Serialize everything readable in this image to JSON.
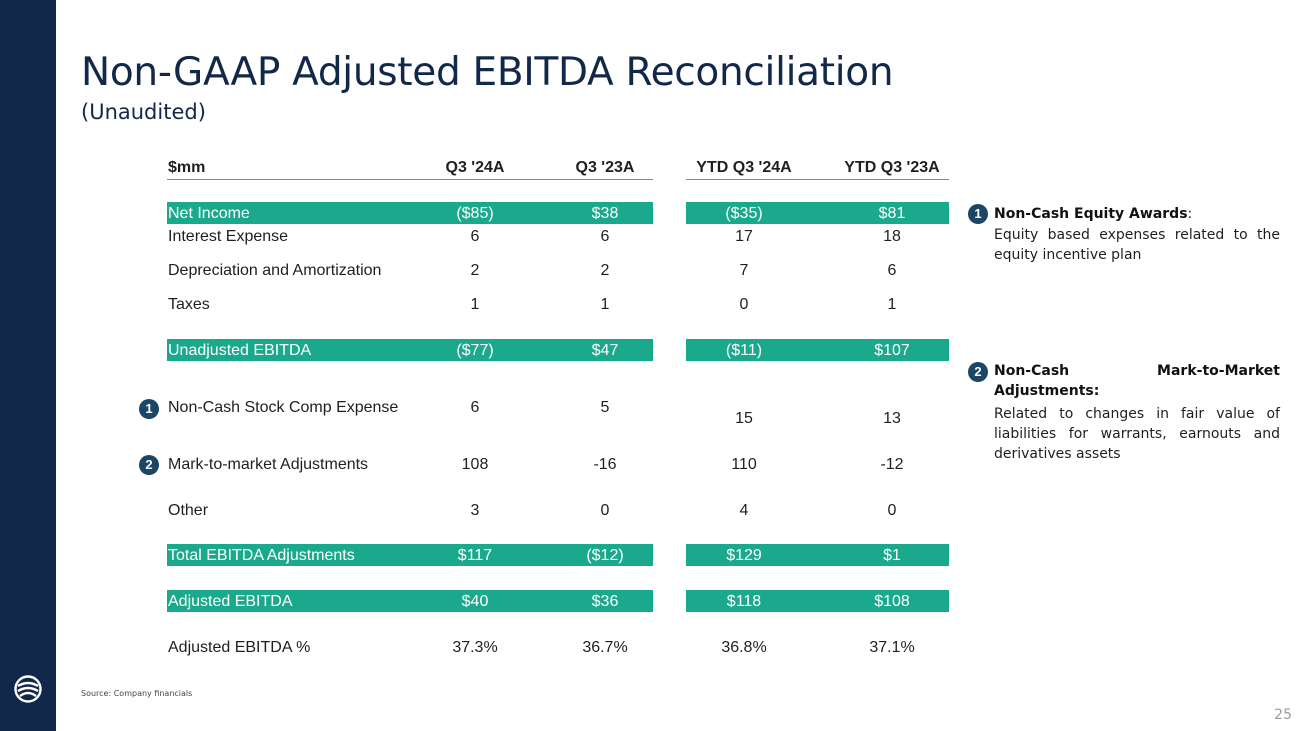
{
  "title": "Non-GAAP Adjusted EBITDA Reconciliation",
  "subtitle": "(Unaudited)",
  "colors": {
    "navy": "#12284a",
    "teal": "#1aa98c",
    "badge": "#1b4666"
  },
  "table": {
    "headers": {
      "label": "$mm",
      "q3_24": "Q3 '24A",
      "q3_23": "Q3 '23A",
      "ytd_24": "YTD Q3 '24A",
      "ytd_23": "YTD Q3 '23A"
    },
    "rows": [
      {
        "label": "Net Income",
        "q3_24": "($85)",
        "q3_23": "$38",
        "ytd_24": "($35)",
        "ytd_23": "$81"
      },
      {
        "label": "Interest Expense",
        "q3_24": "6",
        "q3_23": "6",
        "ytd_24": "17",
        "ytd_23": "18"
      },
      {
        "label": "Depreciation and Amortization",
        "q3_24": "2",
        "q3_23": "2",
        "ytd_24": "7",
        "ytd_23": "6"
      },
      {
        "label": "Taxes",
        "q3_24": "1",
        "q3_23": "1",
        "ytd_24": "0",
        "ytd_23": "1"
      },
      {
        "label": "Unadjusted EBITDA",
        "q3_24": "($77)",
        "q3_23": "$47",
        "ytd_24": "($11)",
        "ytd_23": "$107"
      },
      {
        "label": "Non-Cash Stock Comp Expense",
        "badge": "1",
        "q3_24": "6",
        "q3_23": "5",
        "ytd_24": "15",
        "ytd_23": "13"
      },
      {
        "label": "Mark-to-market Adjustments",
        "badge": "2",
        "q3_24": "108",
        "q3_23": "-16",
        "ytd_24": "110",
        "ytd_23": "-12"
      },
      {
        "label": "Other",
        "q3_24": "3",
        "q3_23": "0",
        "ytd_24": "4",
        "ytd_23": "0"
      },
      {
        "label": "Total EBITDA Adjustments",
        "q3_24": "$117",
        "q3_23": "($12)",
        "ytd_24": "$129",
        "ytd_23": "$1"
      },
      {
        "label": "Adjusted EBITDA",
        "q3_24": "$40",
        "q3_23": "$36",
        "ytd_24": "$118",
        "ytd_23": "$108"
      },
      {
        "label": "Adjusted EBITDA %",
        "q3_24": "37.3%",
        "q3_23": "36.7%",
        "ytd_24": "36.8%",
        "ytd_23": "37.1%"
      }
    ]
  },
  "notes": [
    {
      "badge": "1",
      "heading": "Non-Cash Equity Awards",
      "heading_suffix": ":",
      "body": "Equity based expenses related to the equity incentive plan"
    },
    {
      "badge": "2",
      "heading": "Non-Cash Mark-to-Market Adjustments:",
      "body": "Related to changes in fair value of liabilities for warrants, earnouts and derivatives assets"
    }
  ],
  "source": "Source: Company financials",
  "page_number": "25"
}
